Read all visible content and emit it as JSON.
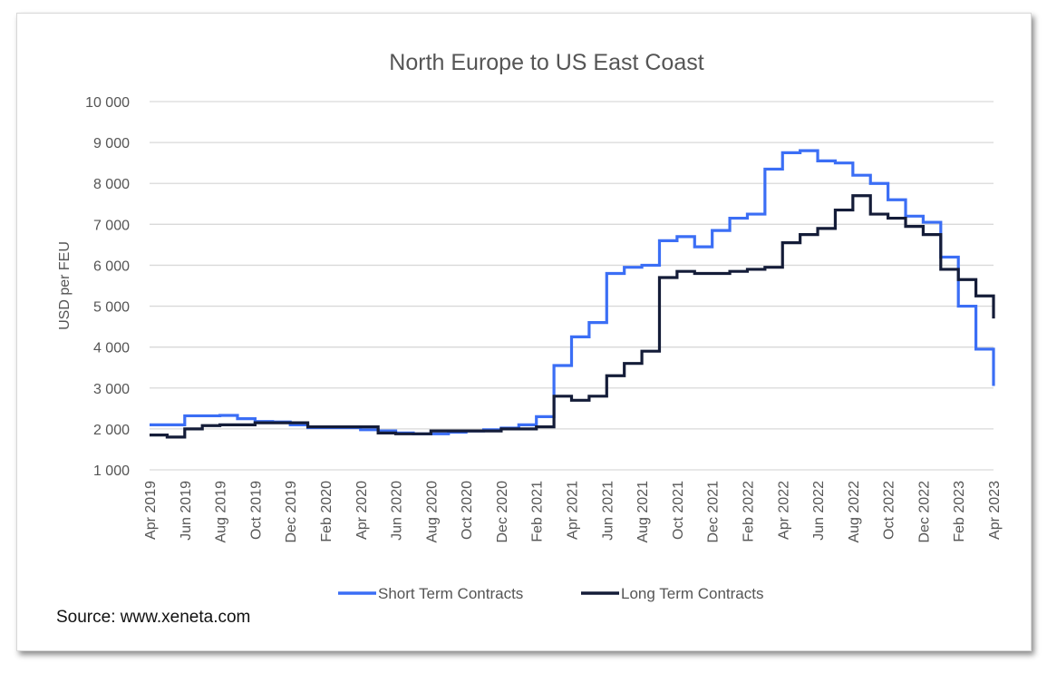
{
  "chart_data": {
    "type": "line",
    "title": "North Europe to US East Coast",
    "ylabel": "USD per FEU",
    "xlabel": "",
    "ylim": [
      1000,
      10000
    ],
    "yticks": [
      "1 000",
      "2 000",
      "3 000",
      "4 000",
      "5 000",
      "6 000",
      "7 000",
      "8 000",
      "9 000",
      "10 000"
    ],
    "ytick_values": [
      1000,
      2000,
      3000,
      4000,
      5000,
      6000,
      7000,
      8000,
      9000,
      10000
    ],
    "xtick_labels": [
      "Apr 2019",
      "Jun 2019",
      "Aug 2019",
      "Oct 2019",
      "Dec 2019",
      "Feb 2020",
      "Apr 2020",
      "Jun 2020",
      "Aug 2020",
      "Oct 2020",
      "Dec 2020",
      "Feb 2021",
      "Apr 2021",
      "Jun 2021",
      "Aug 2021",
      "Oct 2021",
      "Dec 2021",
      "Feb 2022",
      "Apr 2022",
      "Jun 2022",
      "Aug 2022",
      "Oct 2022",
      "Dec 2022",
      "Feb 2023",
      "Apr 2023"
    ],
    "grid": true,
    "legend_position": "bottom",
    "x": [
      "2019-04",
      "2019-05",
      "2019-06",
      "2019-07",
      "2019-08",
      "2019-09",
      "2019-10",
      "2019-11",
      "2019-12",
      "2020-01",
      "2020-02",
      "2020-03",
      "2020-04",
      "2020-05",
      "2020-06",
      "2020-07",
      "2020-08",
      "2020-09",
      "2020-10",
      "2020-11",
      "2020-12",
      "2021-01",
      "2021-02",
      "2021-03",
      "2021-04",
      "2021-05",
      "2021-06",
      "2021-07",
      "2021-08",
      "2021-09",
      "2021-10",
      "2021-11",
      "2021-12",
      "2022-01",
      "2022-02",
      "2022-03",
      "2022-04",
      "2022-05",
      "2022-06",
      "2022-07",
      "2022-08",
      "2022-09",
      "2022-10",
      "2022-11",
      "2022-12",
      "2023-01",
      "2023-02",
      "2023-03",
      "2023-04"
    ],
    "series": [
      {
        "name": "Short Term Contracts",
        "color": "#3b6ef5",
        "values": [
          2100,
          2100,
          2320,
          2320,
          2330,
          2250,
          2180,
          2170,
          2100,
          2030,
          2030,
          2030,
          1980,
          1950,
          1900,
          1880,
          1880,
          1920,
          1950,
          1980,
          2020,
          2100,
          2300,
          3550,
          4250,
          4600,
          5800,
          5950,
          6000,
          6600,
          6700,
          6450,
          6850,
          7150,
          7250,
          8350,
          8750,
          8800,
          8550,
          8500,
          8200,
          8000,
          7600,
          7200,
          7050,
          6200,
          5000,
          3950,
          3050
        ]
      },
      {
        "name": "Long Term Contracts",
        "color": "#141c38",
        "values": [
          1850,
          1800,
          2000,
          2080,
          2100,
          2100,
          2150,
          2150,
          2150,
          2050,
          2050,
          2050,
          2050,
          1900,
          1880,
          1880,
          1950,
          1950,
          1950,
          1950,
          2000,
          2000,
          2050,
          2800,
          2700,
          2800,
          3300,
          3600,
          3900,
          5700,
          5850,
          5800,
          5800,
          5850,
          5900,
          5950,
          6550,
          6750,
          6900,
          7350,
          7700,
          7250,
          7150,
          6950,
          6750,
          5900,
          5650,
          5250,
          4700
        ]
      }
    ]
  },
  "source": "Source: www.xeneta.com"
}
